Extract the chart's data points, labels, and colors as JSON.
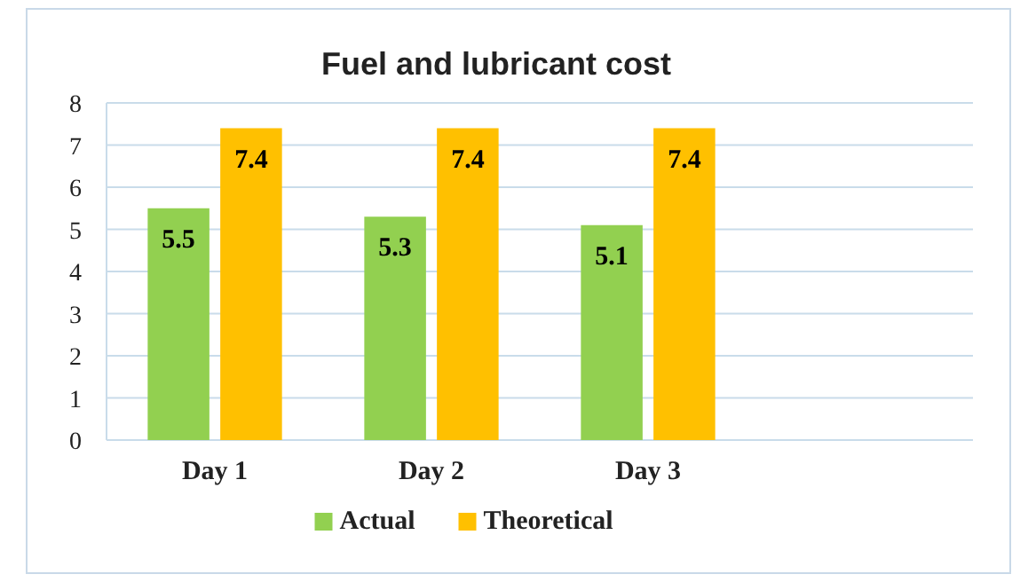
{
  "chart_data": {
    "type": "bar",
    "title": "Fuel and lubricant cost",
    "categories": [
      "Day 1",
      "Day 2",
      "Day 3",
      null
    ],
    "series": [
      {
        "name": "Actual",
        "color": "#92d050",
        "values": [
          5.5,
          5.3,
          5.1,
          null
        ]
      },
      {
        "name": "Theoretical",
        "color": "#ffc000",
        "values": [
          7.4,
          7.4,
          7.4,
          null
        ]
      }
    ],
    "ylim": [
      0,
      8
    ],
    "yticks": [
      0,
      1,
      2,
      3,
      4,
      5,
      6,
      7,
      8
    ],
    "grid": "y",
    "legend": "bottom",
    "data_labels": true
  }
}
